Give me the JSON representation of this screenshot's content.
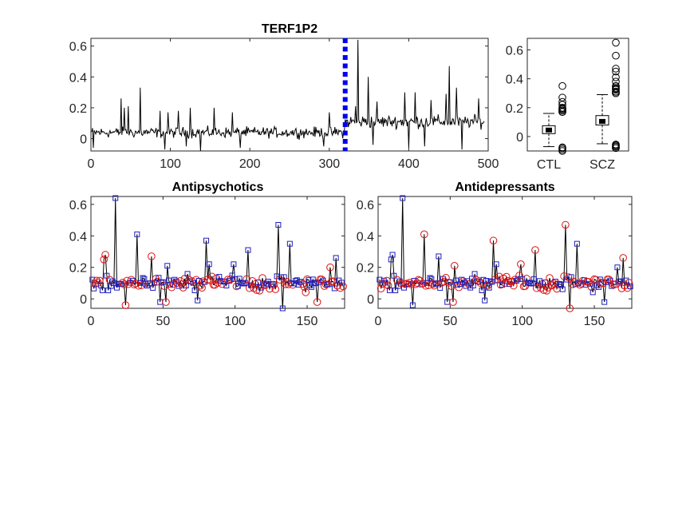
{
  "chart_data": [
    {
      "id": "main",
      "type": "line",
      "title": "TERF1P2",
      "xlim": [
        0,
        500
      ],
      "ylim": [
        -0.08,
        0.65
      ],
      "xticks": [
        "0",
        "100",
        "200",
        "300",
        "400",
        "500"
      ],
      "yticks": [
        "0",
        "0.2",
        "0.4",
        "0.6"
      ],
      "grid": false,
      "n_points": 495,
      "divider_x": 320,
      "segments": [
        {
          "range": [
            1,
            319
          ],
          "mean": 0.04,
          "spread": 0.05
        },
        {
          "range": [
            320,
            495
          ],
          "mean": 0.11,
          "spread": 0.06
        }
      ],
      "notable_peaks": [
        {
          "x": 38,
          "y": 0.26
        },
        {
          "x": 42,
          "y": 0.2
        },
        {
          "x": 47,
          "y": 0.21
        },
        {
          "x": 62,
          "y": 0.33
        },
        {
          "x": 87,
          "y": 0.18
        },
        {
          "x": 97,
          "y": 0.17
        },
        {
          "x": 110,
          "y": 0.18
        },
        {
          "x": 125,
          "y": 0.2
        },
        {
          "x": 155,
          "y": 0.2
        },
        {
          "x": 178,
          "y": 0.17
        },
        {
          "x": 300,
          "y": 0.17
        },
        {
          "x": 333,
          "y": 0.21
        },
        {
          "x": 336,
          "y": 0.64
        },
        {
          "x": 349,
          "y": 0.4
        },
        {
          "x": 360,
          "y": 0.24
        },
        {
          "x": 395,
          "y": 0.3
        },
        {
          "x": 408,
          "y": 0.3
        },
        {
          "x": 428,
          "y": 0.25
        },
        {
          "x": 447,
          "y": 0.29
        },
        {
          "x": 451,
          "y": 0.47
        },
        {
          "x": 460,
          "y": 0.33
        },
        {
          "x": 488,
          "y": 0.26
        }
      ],
      "notable_dips": [
        {
          "x": 3,
          "y": -0.06
        },
        {
          "x": 93,
          "y": -0.07
        },
        {
          "x": 120,
          "y": -0.05
        },
        {
          "x": 138,
          "y": -0.09
        },
        {
          "x": 188,
          "y": -0.06
        },
        {
          "x": 293,
          "y": -0.05
        },
        {
          "x": 355,
          "y": -0.04
        },
        {
          "x": 400,
          "y": -0.06
        },
        {
          "x": 420,
          "y": -0.05
        },
        {
          "x": 467,
          "y": -0.07
        }
      ]
    },
    {
      "id": "box",
      "type": "box",
      "categories": [
        "CTL",
        "SCZ"
      ],
      "ylim": [
        -0.1,
        0.68
      ],
      "yticks": [
        "0",
        "0.2",
        "0.4",
        "0.6"
      ],
      "boxes": [
        {
          "q1": 0.02,
          "median": 0.045,
          "q3": 0.075,
          "whisker_low": -0.07,
          "whisker_high": 0.16,
          "outliers": [
            0.17,
            0.18,
            0.19,
            0.2,
            0.22,
            0.24,
            0.27,
            0.35,
            -0.08,
            -0.09,
            -0.1
          ]
        },
        {
          "q1": 0.08,
          "median": 0.105,
          "q3": 0.145,
          "whisker_low": -0.05,
          "whisker_high": 0.29,
          "outliers": [
            0.3,
            0.31,
            0.33,
            0.35,
            0.38,
            0.41,
            0.45,
            0.47,
            0.56,
            0.65,
            -0.06,
            -0.07,
            -0.08
          ]
        }
      ]
    },
    {
      "id": "antipsychotics",
      "type": "scatter",
      "title": "Antipsychotics",
      "xlim": [
        0,
        176
      ],
      "ylim": [
        -0.06,
        0.65
      ],
      "xticks": [
        "0",
        "50",
        "100",
        "150"
      ],
      "yticks": [
        "0",
        "0.2",
        "0.4",
        "0.6"
      ],
      "n_points": 175,
      "series_colors": [
        "#0000cc",
        "#dd0000"
      ],
      "marker_types": [
        "square",
        "circle"
      ],
      "values_key": "shared_trace"
    },
    {
      "id": "antidepressants",
      "type": "scatter",
      "title": "Antidepressants",
      "xlim": [
        0,
        176
      ],
      "ylim": [
        -0.06,
        0.65
      ],
      "xticks": [
        "0",
        "50",
        "100",
        "150"
      ],
      "yticks": [
        "0",
        "0.2",
        "0.4",
        "0.6"
      ],
      "n_points": 175,
      "series_colors": [
        "#0000cc",
        "#dd0000"
      ],
      "marker_types": [
        "square",
        "circle"
      ],
      "values_key": "shared_trace"
    }
  ],
  "shared_trace_peaks": [
    {
      "x": 17,
      "y": 0.64
    },
    {
      "x": 10,
      "y": 0.28
    },
    {
      "x": 9,
      "y": 0.25
    },
    {
      "x": 32,
      "y": 0.41
    },
    {
      "x": 42,
      "y": 0.27
    },
    {
      "x": 53,
      "y": 0.21
    },
    {
      "x": 80,
      "y": 0.37
    },
    {
      "x": 82,
      "y": 0.22
    },
    {
      "x": 99,
      "y": 0.22
    },
    {
      "x": 109,
      "y": 0.31
    },
    {
      "x": 130,
      "y": 0.47
    },
    {
      "x": 138,
      "y": 0.35
    },
    {
      "x": 170,
      "y": 0.26
    },
    {
      "x": 166,
      "y": 0.2
    }
  ],
  "shared_trace_dips": [
    {
      "x": 24,
      "y": -0.04
    },
    {
      "x": 48,
      "y": -0.02
    },
    {
      "x": 52,
      "y": -0.02
    },
    {
      "x": 74,
      "y": -0.01
    },
    {
      "x": 133,
      "y": -0.06
    },
    {
      "x": 157,
      "y": -0.02
    }
  ],
  "colors": {
    "line": "#000000",
    "divider": "#0000ee",
    "blue": "#1f1fbf",
    "red": "#dd1111",
    "axis": "#262626"
  }
}
